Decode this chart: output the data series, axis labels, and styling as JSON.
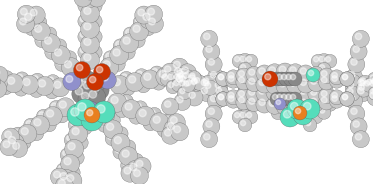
{
  "background_color": "#ffffff",
  "figure_width": 3.73,
  "figure_height": 1.84,
  "dpi": 100,
  "atom_colors": {
    "C_light": "#c8c8c8",
    "C_dark": "#888888",
    "N": "#9090cc",
    "O": "#cc3300",
    "F_teal": "#55ddbb",
    "P": "#e88020"
  }
}
